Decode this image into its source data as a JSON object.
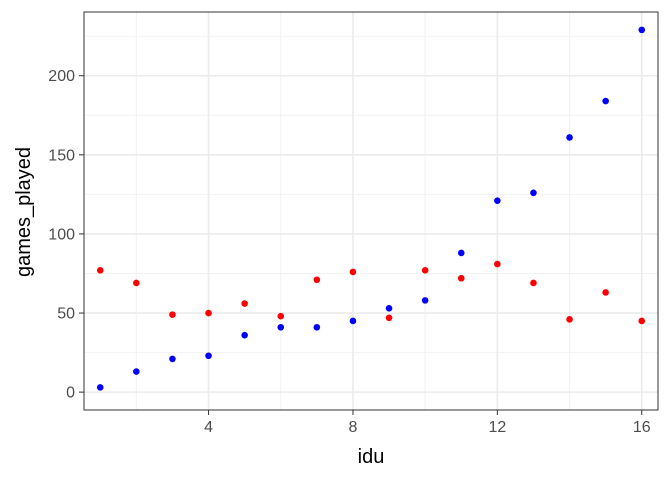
{
  "chart_data": {
    "type": "scatter",
    "xlabel": "idu",
    "ylabel": "games_played",
    "xlim": [
      0.55,
      16.45
    ],
    "ylim": [
      -11.3,
      240.3
    ],
    "x_ticks": [
      4,
      8,
      12,
      16
    ],
    "y_ticks": [
      0,
      50,
      100,
      150,
      200
    ],
    "grid": true,
    "series": [
      {
        "color": "#0000ff",
        "points": [
          {
            "x": 1,
            "y": 3
          },
          {
            "x": 2,
            "y": 13
          },
          {
            "x": 3,
            "y": 21
          },
          {
            "x": 4,
            "y": 23
          },
          {
            "x": 5,
            "y": 36
          },
          {
            "x": 6,
            "y": 41
          },
          {
            "x": 7,
            "y": 41
          },
          {
            "x": 8,
            "y": 45
          },
          {
            "x": 9,
            "y": 53
          },
          {
            "x": 10,
            "y": 58
          },
          {
            "x": 11,
            "y": 88
          },
          {
            "x": 12,
            "y": 121
          },
          {
            "x": 13,
            "y": 126
          },
          {
            "x": 14,
            "y": 161
          },
          {
            "x": 15,
            "y": 184
          },
          {
            "x": 16,
            "y": 229
          }
        ]
      },
      {
        "color": "#ff0000",
        "points": [
          {
            "x": 1,
            "y": 77
          },
          {
            "x": 2,
            "y": 69
          },
          {
            "x": 3,
            "y": 49
          },
          {
            "x": 4,
            "y": 50
          },
          {
            "x": 5,
            "y": 56
          },
          {
            "x": 6,
            "y": 48
          },
          {
            "x": 7,
            "y": 71
          },
          {
            "x": 8,
            "y": 76
          },
          {
            "x": 9,
            "y": 47
          },
          {
            "x": 10,
            "y": 77
          },
          {
            "x": 11,
            "y": 72
          },
          {
            "x": 12,
            "y": 81
          },
          {
            "x": 13,
            "y": 69
          },
          {
            "x": 14,
            "y": 46
          },
          {
            "x": 15,
            "y": 63
          },
          {
            "x": 16,
            "y": 45
          }
        ]
      }
    ]
  }
}
